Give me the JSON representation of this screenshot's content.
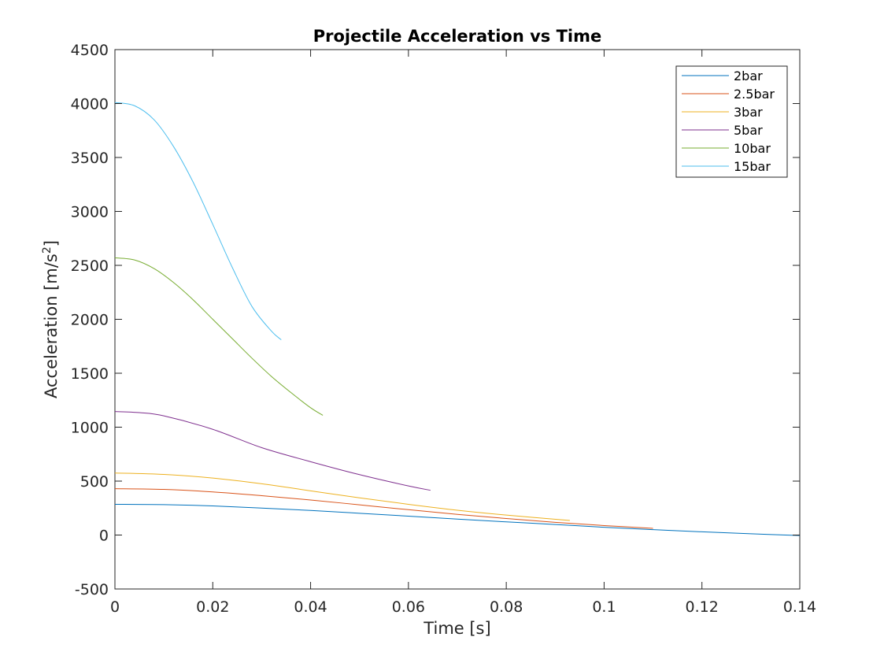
{
  "chart_data": {
    "type": "line",
    "title": "Projectile Acceleration vs Time",
    "xlabel": "Time [s]",
    "ylabel_main": "Acceleration [m/s",
    "ylabel_sup": "2",
    "ylabel_end": "]",
    "xlim": [
      0,
      0.14
    ],
    "ylim": [
      -500,
      4500
    ],
    "xticks": [
      0,
      0.02,
      0.04,
      0.06,
      0.08,
      0.1,
      0.12,
      0.14
    ],
    "xtick_labels": [
      "0",
      "0.02",
      "0.04",
      "0.06",
      "0.08",
      "0.1",
      "0.12",
      "0.14"
    ],
    "yticks": [
      -500,
      0,
      500,
      1000,
      1500,
      2000,
      2500,
      3000,
      3500,
      4000,
      4500
    ],
    "ytick_labels": [
      "-500",
      "0",
      "500",
      "1000",
      "1500",
      "2000",
      "2500",
      "3000",
      "3500",
      "4000",
      "4500"
    ],
    "grid": false,
    "legend_position": "top-right",
    "series": [
      {
        "name": "2bar",
        "color": "#0072BD",
        "x": [
          0,
          0.01,
          0.02,
          0.03,
          0.04,
          0.05,
          0.06,
          0.07,
          0.08,
          0.09,
          0.1,
          0.11,
          0.12,
          0.13,
          0.14
        ],
        "y": [
          285,
          282,
          270,
          250,
          228,
          202,
          175,
          148,
          122,
          98,
          72,
          50,
          30,
          12,
          -5
        ]
      },
      {
        "name": "2.5bar",
        "color": "#D95319",
        "x": [
          0,
          0.01,
          0.02,
          0.03,
          0.04,
          0.05,
          0.06,
          0.07,
          0.08,
          0.09,
          0.1,
          0.11
        ],
        "y": [
          430,
          423,
          400,
          365,
          325,
          280,
          235,
          192,
          153,
          118,
          88,
          62
        ]
      },
      {
        "name": "3bar",
        "color": "#EDB120",
        "x": [
          0,
          0.01,
          0.02,
          0.03,
          0.04,
          0.05,
          0.06,
          0.07,
          0.08,
          0.093
        ],
        "y": [
          575,
          562,
          528,
          475,
          410,
          345,
          285,
          230,
          185,
          135
        ]
      },
      {
        "name": "5bar",
        "color": "#7E2F8E",
        "x": [
          0,
          0.005,
          0.01,
          0.02,
          0.03,
          0.04,
          0.05,
          0.06,
          0.0645
        ],
        "y": [
          1145,
          1135,
          1105,
          980,
          810,
          680,
          560,
          455,
          415
        ]
      },
      {
        "name": "10bar",
        "color": "#77AC30",
        "x": [
          0,
          0.004,
          0.008,
          0.012,
          0.016,
          0.02,
          0.024,
          0.028,
          0.032,
          0.036,
          0.04,
          0.0425
        ],
        "y": [
          2570,
          2550,
          2470,
          2340,
          2180,
          2000,
          1820,
          1640,
          1470,
          1320,
          1180,
          1110
        ]
      },
      {
        "name": "15bar",
        "color": "#4DBEEE",
        "x": [
          0,
          0.004,
          0.008,
          0.012,
          0.016,
          0.02,
          0.024,
          0.028,
          0.032,
          0.034
        ],
        "y": [
          4010,
          3980,
          3850,
          3600,
          3270,
          2880,
          2480,
          2120,
          1890,
          1810
        ]
      }
    ]
  }
}
